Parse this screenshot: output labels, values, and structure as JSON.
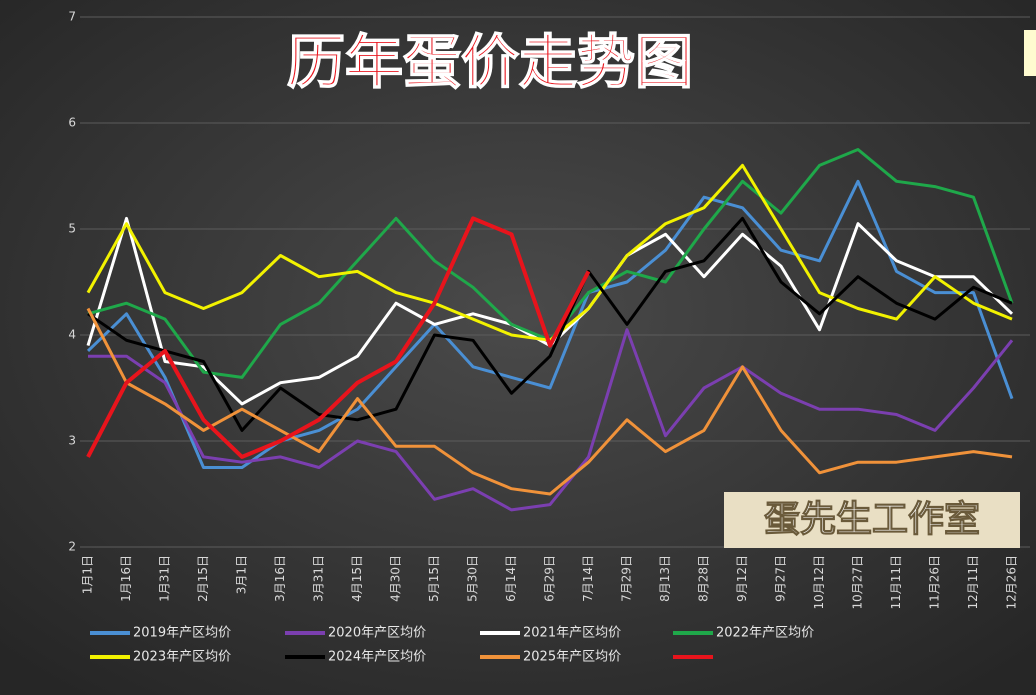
{
  "chart_data": {
    "type": "line",
    "title": "历年蛋价走势图",
    "watermark": "蛋先生工作室",
    "categories": [
      "1月1日",
      "1月16日",
      "1月31日",
      "2月15日",
      "3月1日",
      "3月16日",
      "3月31日",
      "4月15日",
      "4月30日",
      "5月15日",
      "5月30日",
      "6月14日",
      "6月29日",
      "7月14日",
      "7月29日",
      "8月13日",
      "8月28日",
      "9月12日",
      "9月27日",
      "10月12日",
      "10月27日",
      "11月11日",
      "11月26日",
      "12月11日",
      "12月26日"
    ],
    "ylim": [
      2,
      7
    ],
    "yticks": [
      2,
      3,
      4,
      5,
      6,
      7
    ],
    "grid": true,
    "series": [
      {
        "name": "2019年产区均价",
        "color": "#4a8fd4",
        "values": [
          3.85,
          4.2,
          3.6,
          2.75,
          2.75,
          3.0,
          3.1,
          3.3,
          3.7,
          4.1,
          3.7,
          3.6,
          3.5,
          4.4,
          4.5,
          4.8,
          5.3,
          5.2,
          4.8,
          4.7,
          5.45,
          4.6,
          4.4,
          4.4,
          3.4
        ]
      },
      {
        "name": "2020年产区均价",
        "color": "#7b3fb0",
        "values": [
          3.8,
          3.8,
          3.55,
          2.85,
          2.8,
          2.85,
          2.75,
          3.0,
          2.9,
          2.45,
          2.55,
          2.35,
          2.4,
          2.85,
          4.05,
          3.05,
          3.5,
          3.7,
          3.45,
          3.3,
          3.3,
          3.25,
          3.1,
          3.5,
          3.95
        ]
      },
      {
        "name": "2021年产区均价",
        "color": "#ffffff",
        "values": [
          3.9,
          5.1,
          3.75,
          3.7,
          3.35,
          3.55,
          3.6,
          3.8,
          4.3,
          4.1,
          4.2,
          4.1,
          3.9,
          4.25,
          4.75,
          4.95,
          4.55,
          4.95,
          4.65,
          4.05,
          5.05,
          4.7,
          4.55,
          4.55,
          4.2
        ]
      },
      {
        "name": "2022年产区均价",
        "color": "#1fa84a",
        "values": [
          4.2,
          4.3,
          4.15,
          3.65,
          3.6,
          4.1,
          4.3,
          4.7,
          5.1,
          4.7,
          4.45,
          4.1,
          3.95,
          4.4,
          4.6,
          4.5,
          5.0,
          5.45,
          5.15,
          5.6,
          5.75,
          5.45,
          5.4,
          5.3,
          4.3
        ]
      },
      {
        "name": "2023年产区均价",
        "color": "#f2f200",
        "values": [
          4.4,
          5.05,
          4.4,
          4.25,
          4.4,
          4.75,
          4.55,
          4.6,
          4.4,
          4.3,
          4.15,
          4.0,
          3.95,
          4.25,
          4.75,
          5.05,
          5.2,
          5.6,
          5.0,
          4.4,
          4.25,
          4.15,
          4.55,
          4.3,
          4.15
        ]
      },
      {
        "name": "2024年产区均价",
        "color": "#000000",
        "values": [
          4.2,
          3.95,
          3.85,
          3.75,
          3.1,
          3.5,
          3.25,
          3.2,
          3.3,
          4.0,
          3.95,
          3.45,
          3.8,
          4.6,
          4.1,
          4.6,
          4.7,
          5.1,
          4.5,
          4.2,
          4.55,
          4.3,
          4.15,
          4.45,
          4.3
        ]
      },
      {
        "name": "2025年产区均价",
        "color": "#f0923a",
        "values": [
          4.25,
          3.55,
          3.35,
          3.1,
          3.3,
          3.1,
          2.9,
          3.4,
          2.95,
          2.95,
          2.7,
          2.55,
          2.5,
          2.8,
          3.2,
          2.9,
          3.1,
          3.7,
          3.1,
          2.7,
          2.8,
          2.8,
          2.85,
          2.9,
          2.85
        ]
      },
      {
        "color": "#e8141c",
        "values": [
          2.85,
          3.55,
          3.85,
          3.2,
          2.85,
          3.0,
          3.2,
          3.55,
          3.75,
          4.3,
          5.1,
          4.95,
          3.9,
          4.6,
          null,
          null,
          null,
          null,
          null,
          null,
          null,
          null,
          null,
          null,
          null
        ]
      }
    ]
  }
}
